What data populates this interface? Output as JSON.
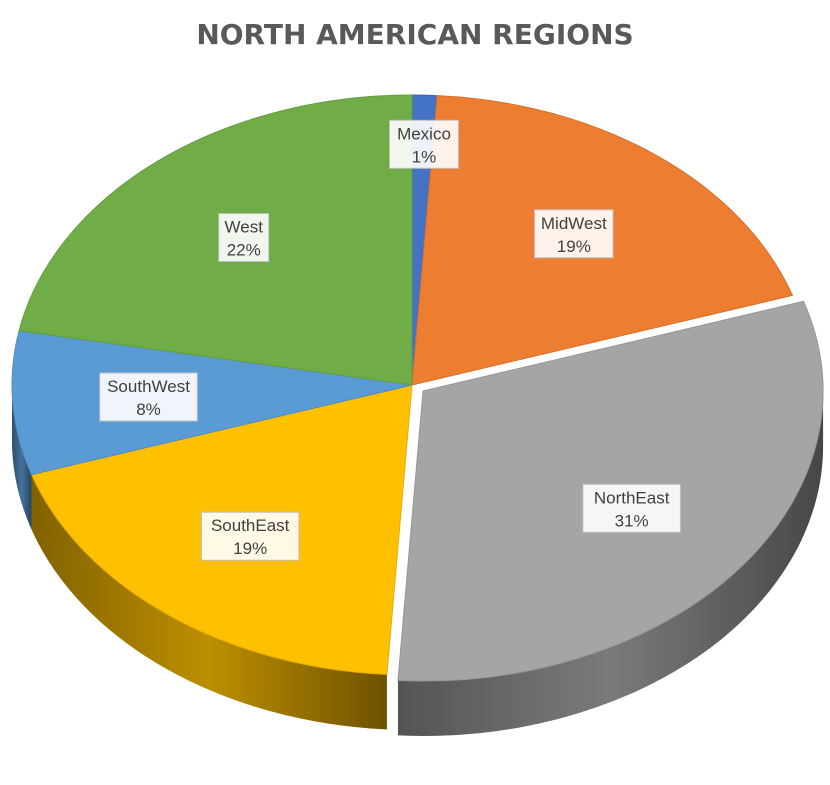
{
  "chart_data": {
    "type": "pie",
    "title": "NORTH AMERICAN REGIONS",
    "start_angle_deg": -90,
    "slices": [
      {
        "name": "Mexico",
        "value": 1,
        "label": "1%",
        "color": "#4472c4"
      },
      {
        "name": "MidWest",
        "value": 19,
        "label": "19%",
        "color": "#ed7d31"
      },
      {
        "name": "NorthEast",
        "value": 31,
        "label": "31%",
        "color": "#a5a5a5"
      },
      {
        "name": "SouthEast",
        "value": 19,
        "label": "19%",
        "color": "#ffc000"
      },
      {
        "name": "SouthWest",
        "value": 8,
        "label": "8%",
        "color": "#5b9bd5"
      },
      {
        "name": "West",
        "value": 22,
        "label": "22%",
        "color": "#70ad47"
      }
    ],
    "legend": "none",
    "style": "3d-tilted"
  }
}
